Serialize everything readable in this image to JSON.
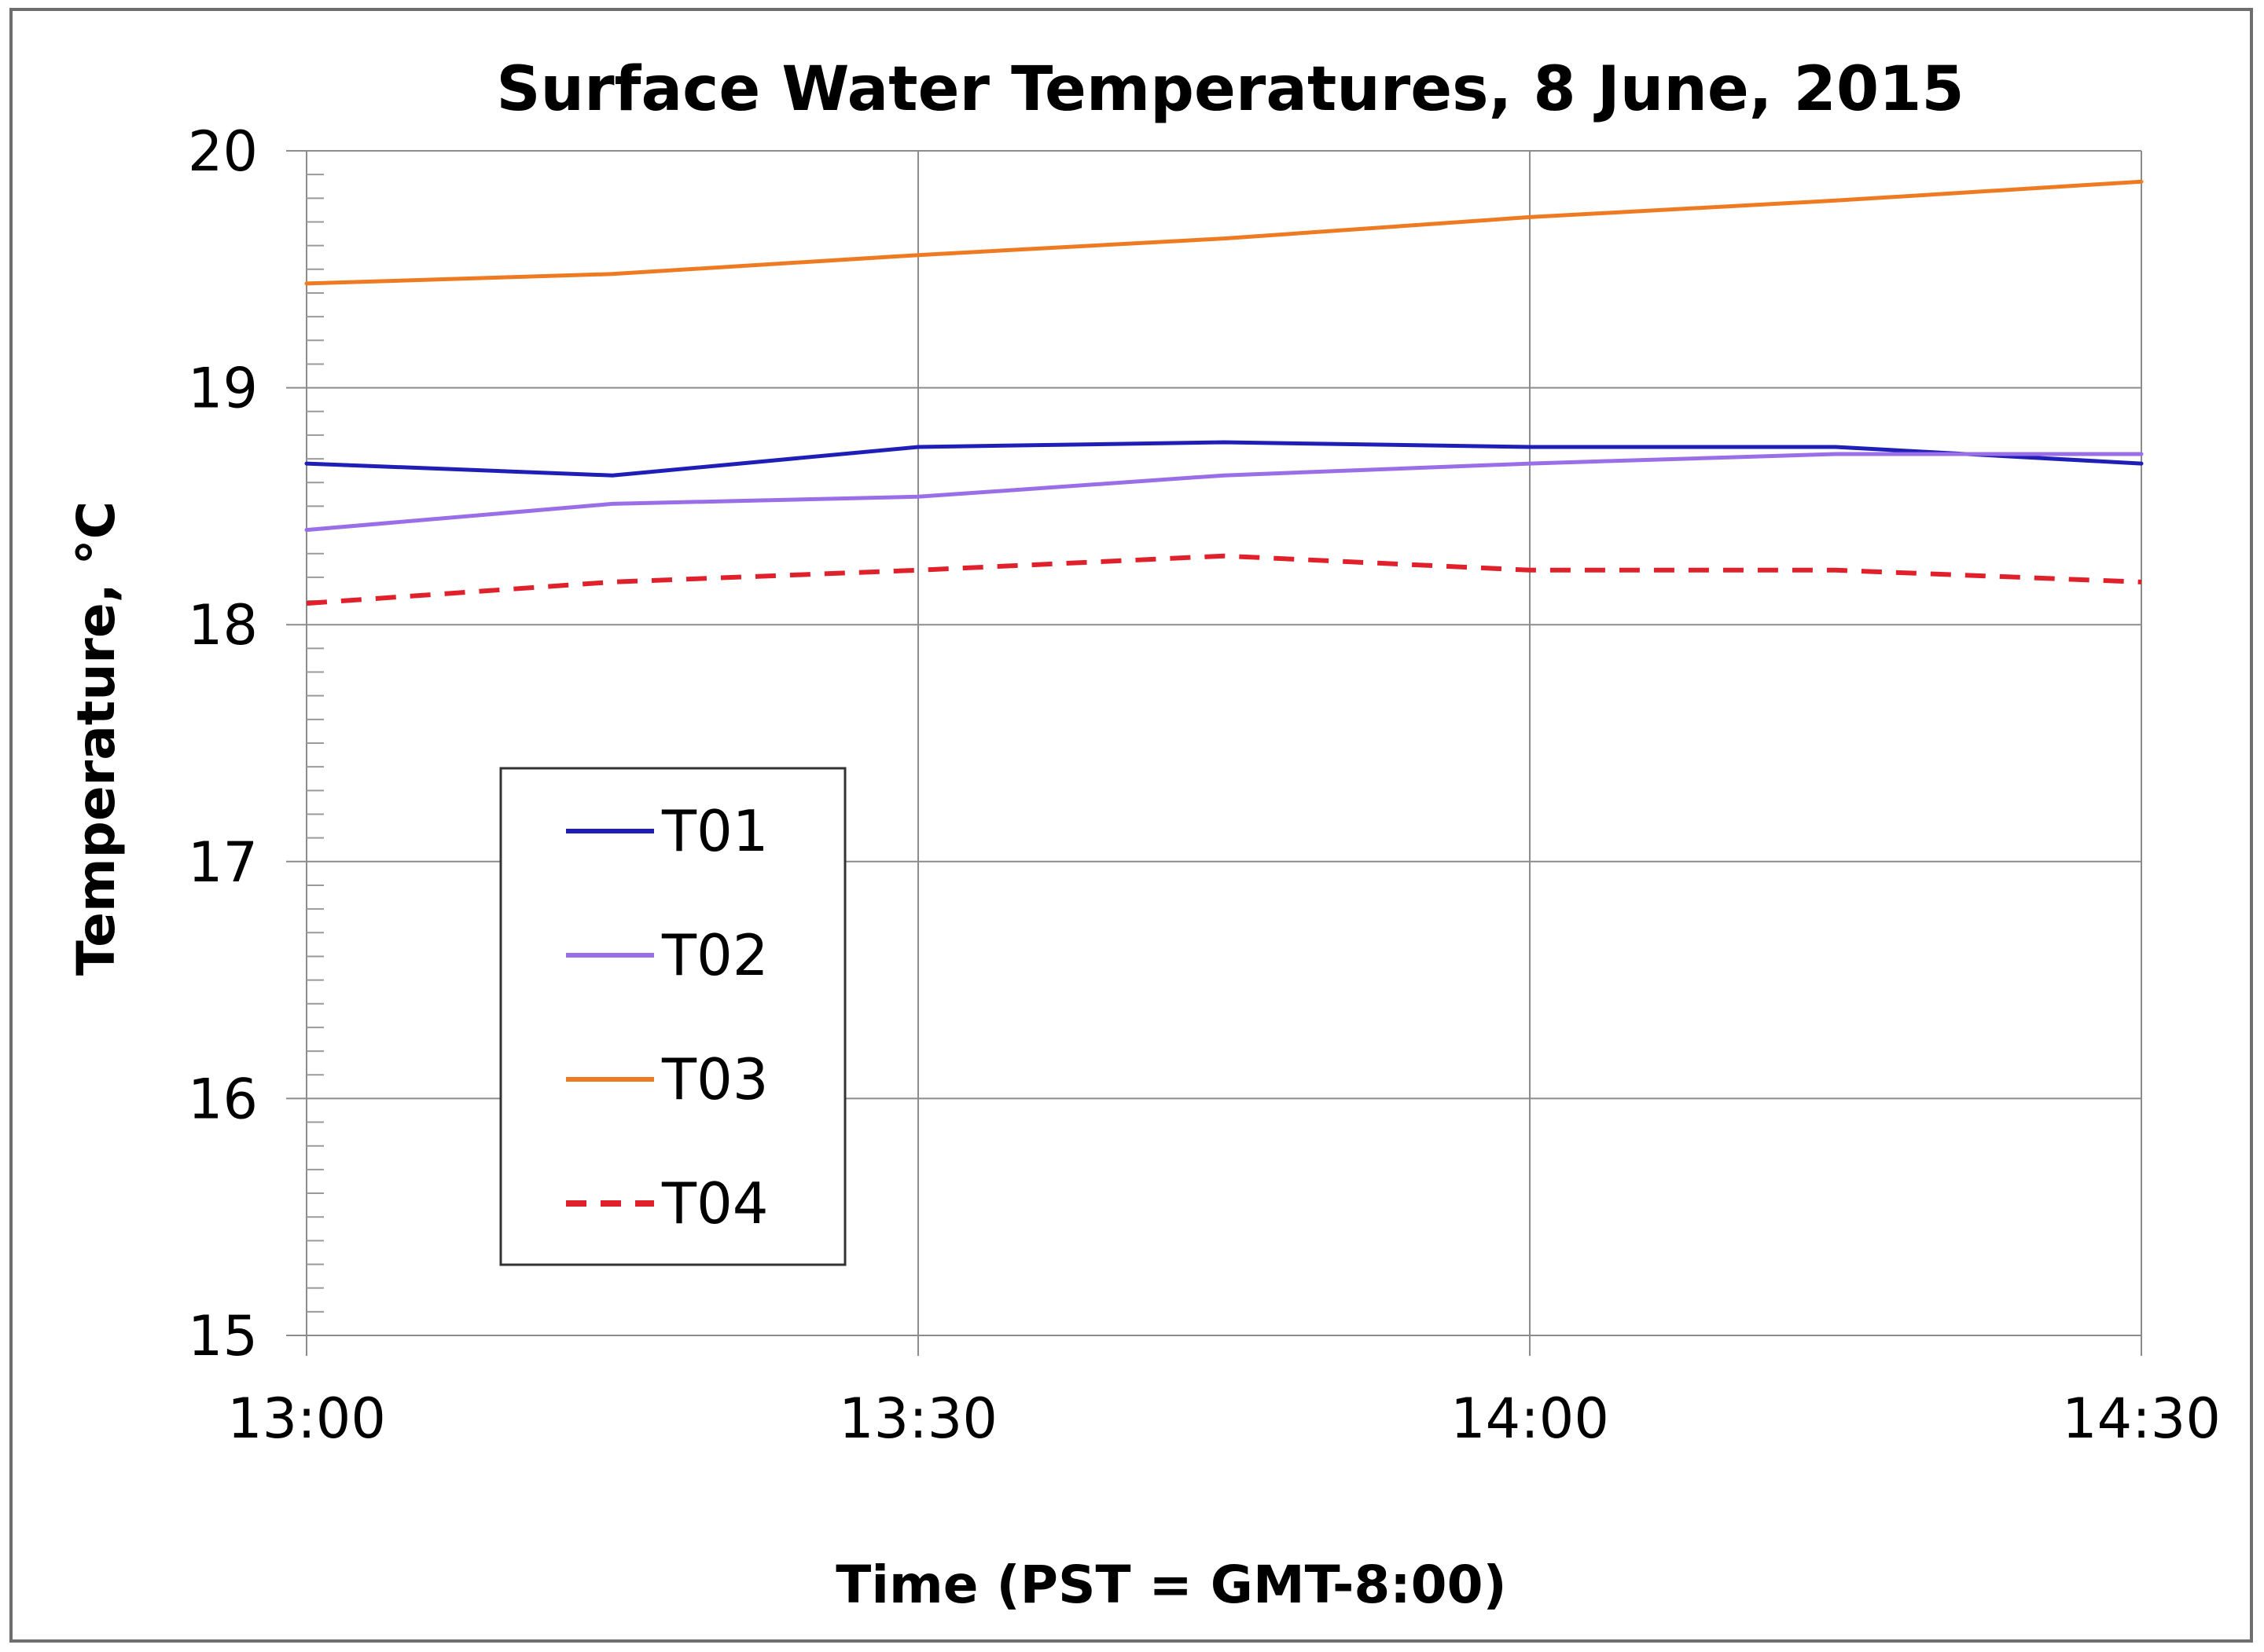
{
  "chart_data": {
    "type": "line",
    "title": "Surface Water Temperatures, 8 June, 2015",
    "xlabel": "Time (PST = GMT-8:00)",
    "ylabel": "Temperature, °C",
    "x": [
      0,
      15,
      30,
      45,
      60,
      75,
      90
    ],
    "x_tick_values": [
      0,
      30,
      60,
      90
    ],
    "x_tick_labels": [
      "13:00",
      "13:30",
      "14:00",
      "14:30"
    ],
    "xlim": [
      0,
      90
    ],
    "ylim": [
      15,
      20
    ],
    "y_ticks": [
      15,
      16,
      17,
      18,
      19,
      20
    ],
    "y_minor_step": 0.1,
    "grid": true,
    "legend_position": "lower-left",
    "series": [
      {
        "name": "T01",
        "color": "#1f1fb8",
        "dash": "solid",
        "values": [
          18.68,
          18.63,
          18.75,
          18.77,
          18.75,
          18.75,
          18.68
        ]
      },
      {
        "name": "T02",
        "color": "#9a6ee6",
        "dash": "solid",
        "values": [
          18.4,
          18.51,
          18.54,
          18.63,
          18.68,
          18.72,
          18.72
        ]
      },
      {
        "name": "T03",
        "color": "#ee7a22",
        "dash": "solid",
        "values": [
          19.44,
          19.48,
          19.56,
          19.63,
          19.72,
          19.79,
          19.87
        ]
      },
      {
        "name": "T04",
        "color": "#e0202a",
        "dash": "dashed",
        "values": [
          18.09,
          18.18,
          18.23,
          18.29,
          18.23,
          18.23,
          18.18
        ]
      }
    ]
  }
}
